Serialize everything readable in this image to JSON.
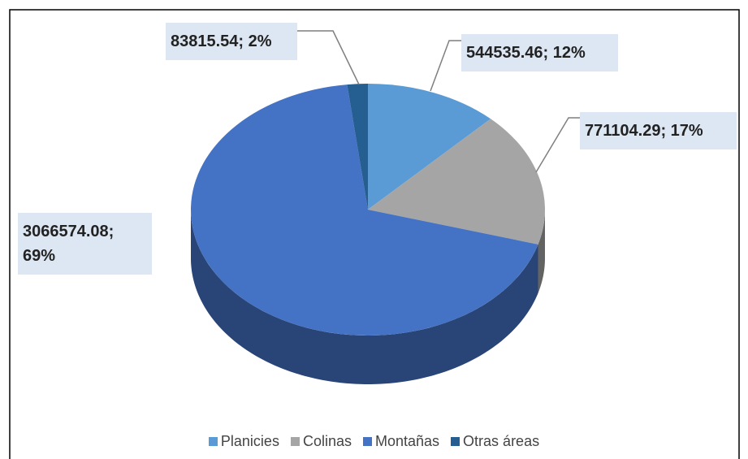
{
  "chart_data": {
    "type": "pie",
    "categories": [
      "Planicies",
      "Colinas",
      "Montañas",
      "Otras áreas"
    ],
    "values": [
      544535.46,
      771104.29,
      3066574.08,
      83815.54
    ],
    "value_labels": [
      "544535.46; 12%",
      "771104.29; 17%",
      "3066574.08; 69%",
      "83815.54; 2%"
    ],
    "colors": [
      "#5b9bd5",
      "#a5a5a5",
      "#4472c4",
      "#255e91"
    ],
    "legend": "bottom"
  }
}
